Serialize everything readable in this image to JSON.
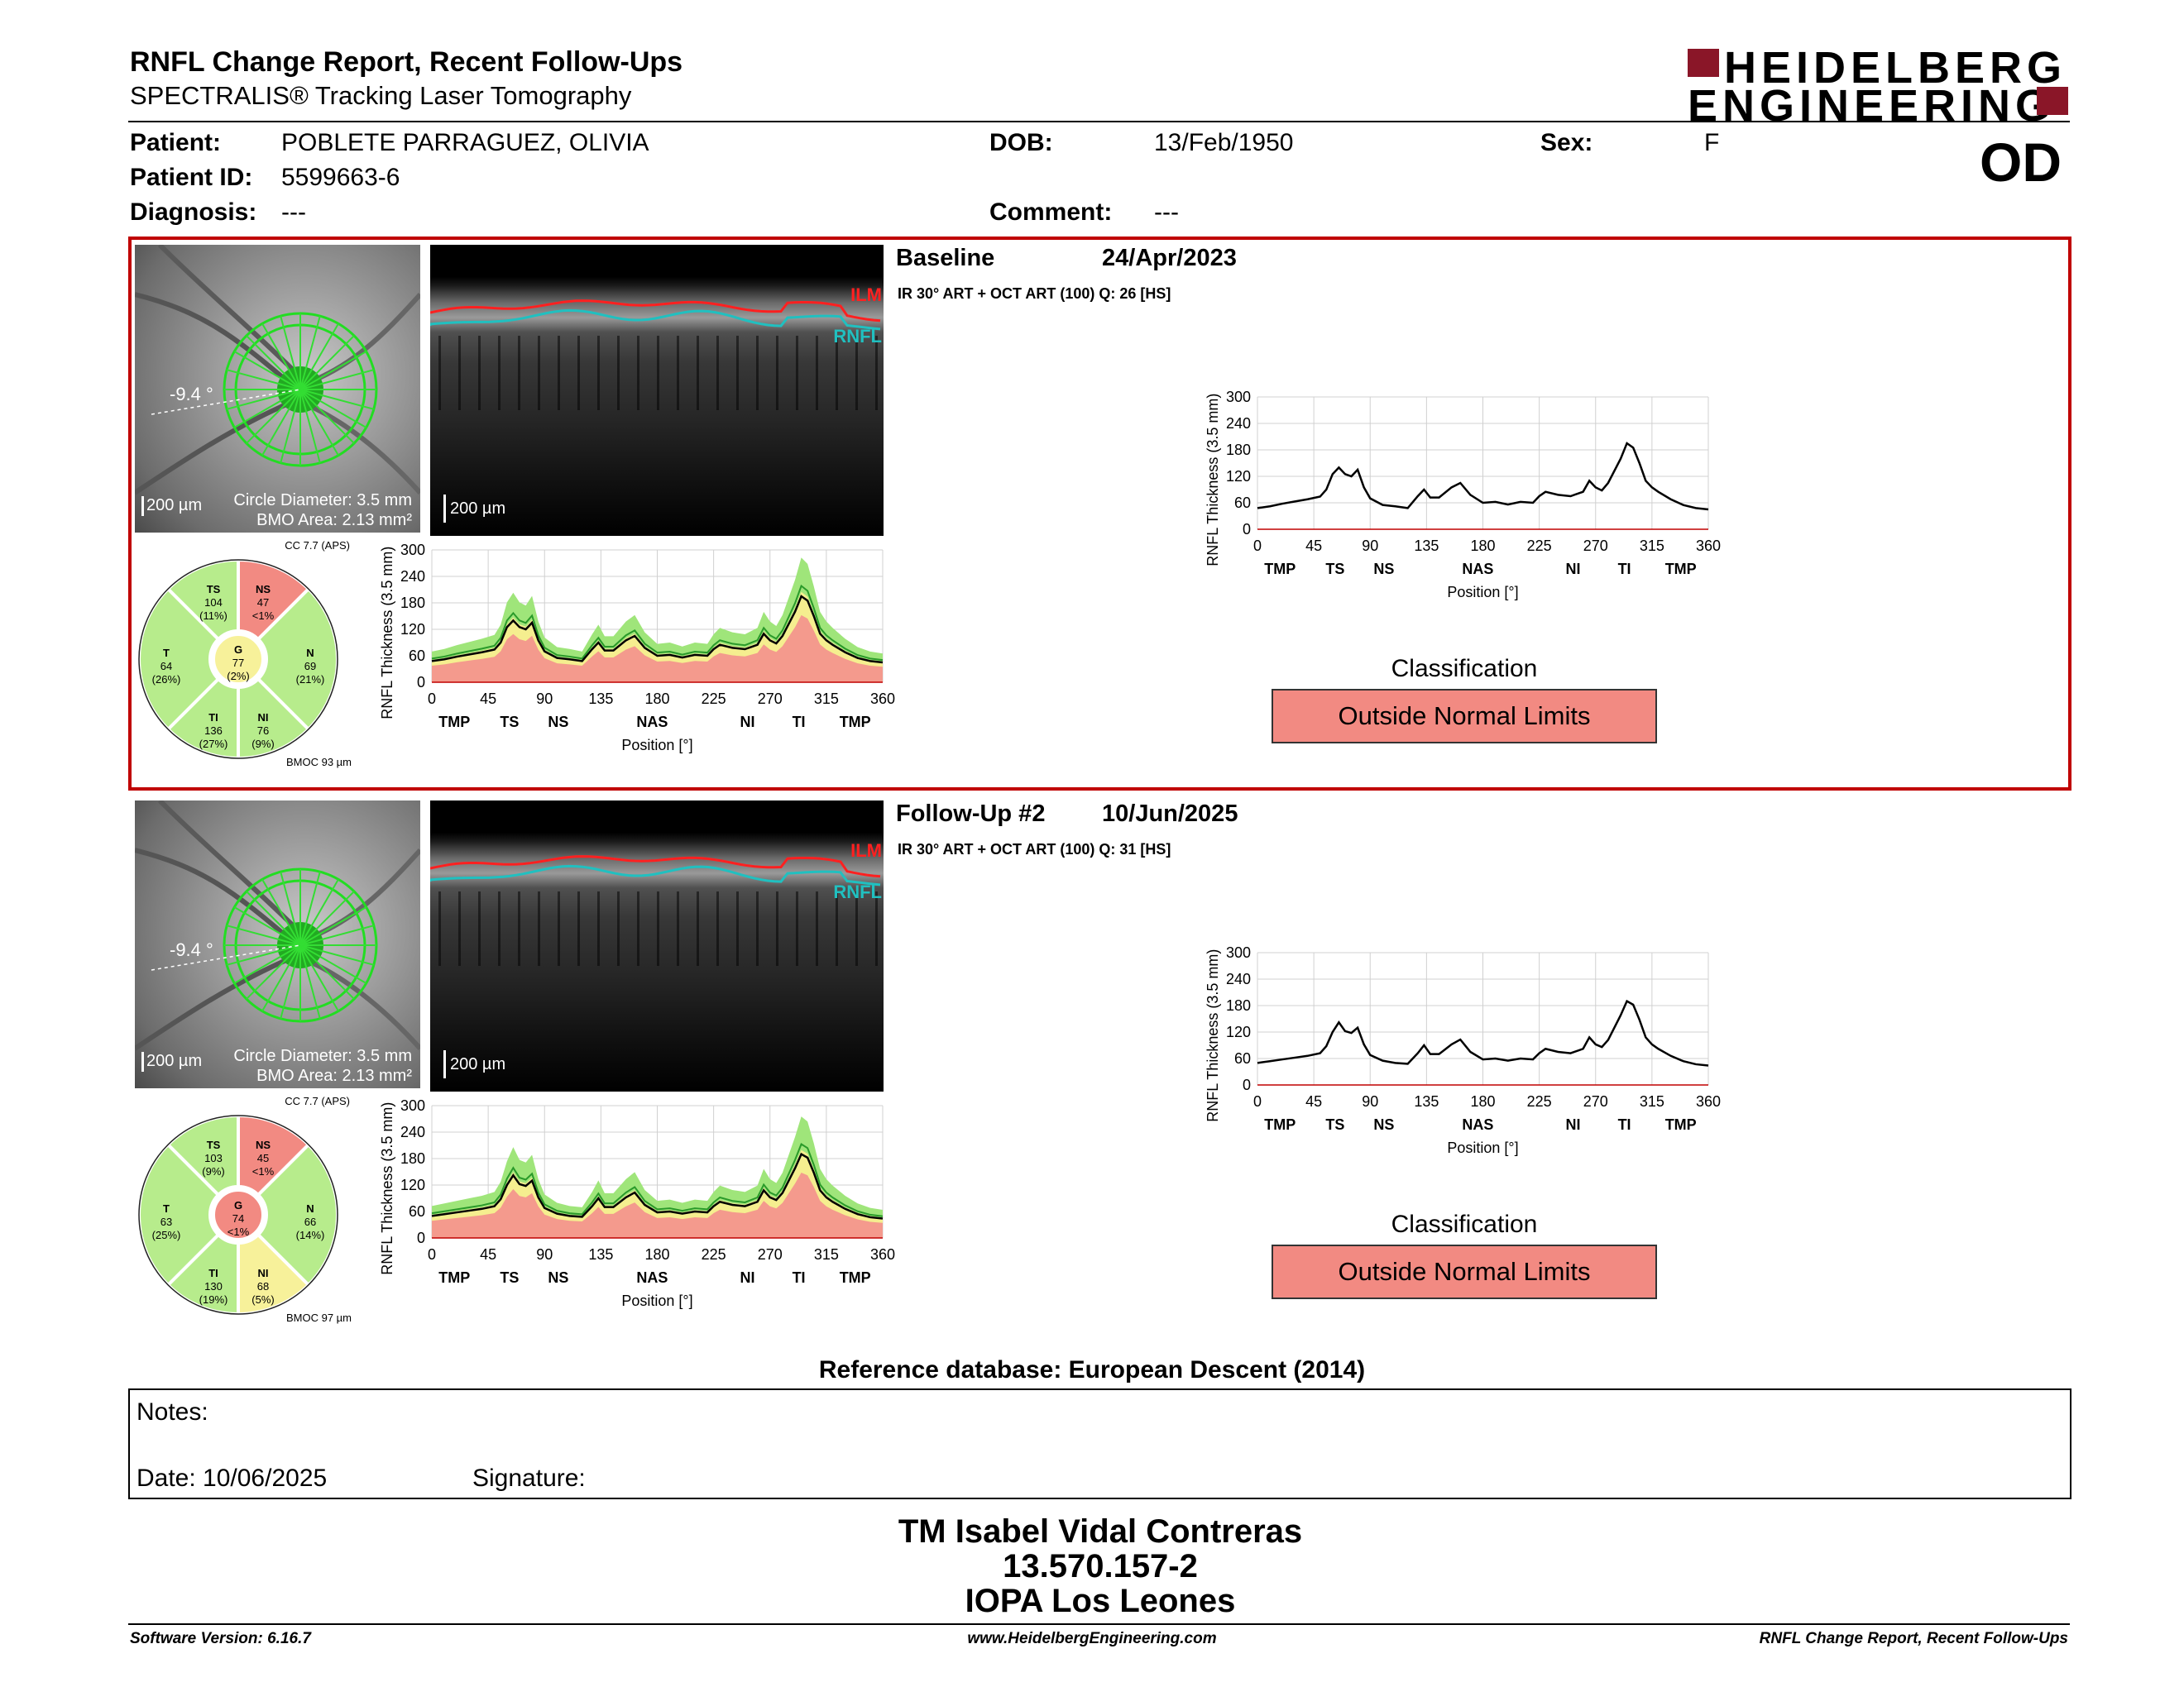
{
  "header": {
    "title": "RNFL Change Report, Recent Follow-Ups",
    "subtitle": "SPECTRALIS® Tracking Laser Tomography",
    "brand_line1": "HEIDELBERG",
    "brand_line2": "ENGINEERING",
    "eye": "OD"
  },
  "patient": {
    "name_label": "Patient:",
    "name": "POBLETE PARRAGUEZ, OLIVIA",
    "id_label": "Patient ID:",
    "id": "5599663-6",
    "diag_label": "Diagnosis:",
    "diag": "---",
    "dob_label": "DOB:",
    "dob": "13/Feb/1950",
    "comment_label": "Comment:",
    "comment": "---",
    "sex_label": "Sex:",
    "sex": "F"
  },
  "exams": [
    {
      "title": "Baseline",
      "date": "24/Apr/2023",
      "details": "IR 30° ART + OCT ART (100) Q: 26 [HS]",
      "angle": "-9.4 °",
      "scale": "200 µm",
      "circle_diameter": "Circle Diameter: 3.5 mm",
      "bmo_area": "BMO Area: 2.13 mm²",
      "oct_scale": "200 µm",
      "ilm": "ILM",
      "rnfl": "RNFL",
      "cc": "CC 7.7 (APS)",
      "bmoc": "BMOC 93 µm",
      "sectors": {
        "TS": {
          "label": "TS",
          "value": "104",
          "pct": "(11%)"
        },
        "NS": {
          "label": "NS",
          "value": "47",
          "pct": "<1%"
        },
        "T": {
          "label": "T",
          "value": "64",
          "pct": "(26%)"
        },
        "G": {
          "label": "G",
          "value": "77",
          "pct": "(2%)"
        },
        "N": {
          "label": "N",
          "value": "69",
          "pct": "(21%)"
        },
        "TI": {
          "label": "TI",
          "value": "136",
          "pct": "(27%)"
        },
        "NI": {
          "label": "NI",
          "value": "76",
          "pct": "(9%)"
        }
      },
      "sector_colors": {
        "TS": "#b7ec8c",
        "NS": "#f28a82",
        "T": "#b7ec8c",
        "G": "#f7f19a",
        "N": "#b7ec8c",
        "TI": "#b7ec8c",
        "NI": "#b7ec8c"
      },
      "classification_label": "Classification",
      "classification": "Outside Normal Limits",
      "accent": "#c00000"
    },
    {
      "title": "Follow-Up #2",
      "date": "10/Jun/2025",
      "details": "IR 30° ART + OCT ART (100) Q: 31 [HS]",
      "angle": "-9.4 °",
      "scale": "200 µm",
      "circle_diameter": "Circle Diameter: 3.5 mm",
      "bmo_area": "BMO Area: 2.13 mm²",
      "oct_scale": "200 µm",
      "ilm": "ILM",
      "rnfl": "RNFL",
      "cc": "CC 7.7 (APS)",
      "bmoc": "BMOC 97 µm",
      "sectors": {
        "TS": {
          "label": "TS",
          "value": "103",
          "pct": "(9%)"
        },
        "NS": {
          "label": "NS",
          "value": "45",
          "pct": "<1%"
        },
        "T": {
          "label": "T",
          "value": "63",
          "pct": "(25%)"
        },
        "G": {
          "label": "G",
          "value": "74",
          "pct": "<1%"
        },
        "N": {
          "label": "N",
          "value": "66",
          "pct": "(14%)"
        },
        "TI": {
          "label": "TI",
          "value": "130",
          "pct": "(19%)"
        },
        "NI": {
          "label": "NI",
          "value": "68",
          "pct": "(5%)"
        }
      },
      "sector_colors": {
        "TS": "#b7ec8c",
        "NS": "#f28a82",
        "T": "#b7ec8c",
        "G": "#f28a82",
        "N": "#b7ec8c",
        "TI": "#b7ec8c",
        "NI": "#f7f19a"
      },
      "classification_label": "Classification",
      "classification": "Outside Normal Limits"
    }
  ],
  "chart_data": [
    {
      "type": "line",
      "title": "",
      "xlabel": "Position [°]",
      "ylabel": "RNFL Thickness (3.5 mm) [µm]",
      "xlim": [
        0,
        360
      ],
      "ylim": [
        0,
        300
      ],
      "x_ticks": [
        0,
        45,
        90,
        135,
        180,
        225,
        270,
        315,
        360
      ],
      "y_ticks": [
        0,
        60,
        120,
        180,
        240,
        300
      ],
      "sector_labels": [
        "TMP",
        "TS",
        "NS",
        "NAS",
        "NI",
        "TI",
        "TMP"
      ],
      "sector_label_positions": [
        18,
        62,
        101,
        176,
        252,
        293,
        338
      ],
      "x": [
        0,
        10,
        20,
        30,
        40,
        50,
        55,
        60,
        65,
        70,
        75,
        80,
        85,
        90,
        100,
        110,
        120,
        128,
        133,
        138,
        145,
        155,
        162,
        170,
        180,
        190,
        200,
        210,
        220,
        225,
        230,
        240,
        250,
        260,
        265,
        270,
        275,
        280,
        290,
        295,
        300,
        305,
        310,
        315,
        320,
        330,
        340,
        350,
        360
      ],
      "series": [
        {
          "name": "Baseline 24/Apr/2023",
          "values": [
            48,
            52,
            58,
            63,
            68,
            74,
            90,
            125,
            140,
            125,
            120,
            135,
            95,
            70,
            55,
            52,
            48,
            75,
            90,
            72,
            72,
            95,
            105,
            78,
            60,
            62,
            56,
            62,
            60,
            75,
            85,
            78,
            75,
            85,
            110,
            95,
            88,
            105,
            160,
            195,
            185,
            150,
            110,
            95,
            85,
            68,
            55,
            48,
            45
          ]
        },
        {
          "name": "Follow-Up #2 10/Jun/2025",
          "values": [
            50,
            54,
            58,
            62,
            66,
            72,
            88,
            120,
            142,
            122,
            118,
            130,
            92,
            68,
            55,
            50,
            48,
            72,
            90,
            70,
            70,
            92,
            103,
            75,
            58,
            60,
            55,
            60,
            58,
            72,
            82,
            75,
            72,
            82,
            108,
            92,
            86,
            102,
            158,
            190,
            182,
            148,
            108,
            92,
            82,
            66,
            54,
            47,
            44
          ]
        }
      ]
    }
  ],
  "reference": "Reference database: European Descent (2014)",
  "notes": {
    "notes_label": "Notes:",
    "date_label": "Date: 10/06/2025",
    "signature_label": "Signature:"
  },
  "signer": {
    "name": "TM Isabel Vidal Contreras",
    "id": "13.570.157-2",
    "place": "IOPA Los Leones"
  },
  "footer": {
    "software": "Software Version: 6.16.7",
    "website": "www.HeidelbergEngineering.com",
    "report": "RNFL Change Report, Recent Follow-Ups"
  }
}
